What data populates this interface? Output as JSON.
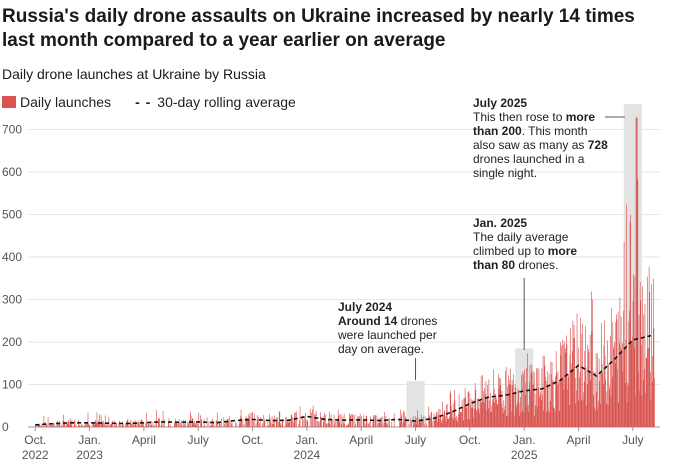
{
  "title": "Russia's daily drone assaults on Ukraine increased by nearly 14 times last month compared to a year earlier on average",
  "subtitle": "Daily drone launches at Ukraine by Russia",
  "legend": {
    "bars": "Daily launches",
    "line": "30-day rolling average",
    "line_marker": "- -"
  },
  "colors": {
    "bar": "#d9534f",
    "line": "#111111",
    "highlight": "#e3e3e3",
    "grid": "#e6e6e6"
  },
  "annotations": {
    "jul2024": {
      "title": "July 2024",
      "bold": "Around 14",
      "text": " drones were launched per day on average."
    },
    "jan2025": {
      "title": "Jan. 2025",
      "pre": "The daily average climbed up to ",
      "bold": "more than 80",
      "post": " drones."
    },
    "jul2025": {
      "title": "July 2025",
      "pre": "This then rose to ",
      "bold1": "more than 200",
      "mid": ". This month also saw as many as ",
      "bold2": "728",
      "post": " drones launched in a single night."
    }
  },
  "chart_data": {
    "type": "bar",
    "title": "Daily drone launches at Ukraine by Russia",
    "xlabel": "",
    "ylabel": "",
    "ylim": [
      0,
      760
    ],
    "yticks": [
      0,
      100,
      200,
      300,
      400,
      500,
      600,
      700
    ],
    "xticks": [
      {
        "label": "Oct.",
        "sub": "2022",
        "month": 0
      },
      {
        "label": "Jan.",
        "sub": "2023",
        "month": 3
      },
      {
        "label": "April",
        "sub": "",
        "month": 6
      },
      {
        "label": "July",
        "sub": "",
        "month": 9
      },
      {
        "label": "Oct.",
        "sub": "",
        "month": 12
      },
      {
        "label": "Jan.",
        "sub": "2024",
        "month": 15
      },
      {
        "label": "April",
        "sub": "",
        "month": 18
      },
      {
        "label": "July",
        "sub": "",
        "month": 21
      },
      {
        "label": "Oct.",
        "sub": "",
        "month": 24
      },
      {
        "label": "Jan.",
        "sub": "2025",
        "month": 27
      },
      {
        "label": "April",
        "sub": "",
        "month": 30
      },
      {
        "label": "July",
        "sub": "",
        "month": 33
      }
    ],
    "x_range_months": [
      -0.4,
      34.5
    ],
    "series": [
      {
        "name": "Daily launches (approx. daily peaks by month)",
        "months": [
          0,
          1,
          2,
          3,
          4,
          5,
          6,
          7,
          8,
          9,
          10,
          11,
          12,
          13,
          14,
          15,
          16,
          17,
          18,
          19,
          20,
          21,
          22,
          23,
          24,
          25,
          26,
          27,
          28,
          29,
          30,
          31,
          32,
          33,
          34
        ],
        "values": [
          20,
          35,
          25,
          40,
          30,
          20,
          35,
          45,
          38,
          40,
          35,
          55,
          50,
          40,
          45,
          60,
          35,
          45,
          40,
          35,
          50,
          45,
          60,
          90,
          110,
          130,
          160,
          170,
          200,
          190,
          250,
          370,
          420,
          728,
          310
        ]
      },
      {
        "name": "30-day rolling average",
        "months": [
          0,
          1,
          2,
          3,
          4,
          5,
          6,
          7,
          8,
          9,
          10,
          11,
          12,
          13,
          14,
          15,
          16,
          17,
          18,
          19,
          20,
          21,
          22,
          23,
          24,
          25,
          26,
          27,
          28,
          29,
          30,
          31,
          32,
          33,
          34
        ],
        "values": [
          5,
          8,
          10,
          10,
          9,
          8,
          10,
          12,
          11,
          12,
          10,
          15,
          18,
          15,
          16,
          25,
          18,
          16,
          17,
          15,
          18,
          14,
          20,
          35,
          55,
          70,
          75,
          85,
          90,
          110,
          145,
          120,
          160,
          205,
          215
        ]
      }
    ],
    "highlights": [
      {
        "month": 21,
        "label": "July 2024",
        "value": 14
      },
      {
        "month": 27,
        "label": "Jan. 2025",
        "value": 80
      },
      {
        "month": 33,
        "label": "July 2025",
        "value": 728
      }
    ]
  }
}
